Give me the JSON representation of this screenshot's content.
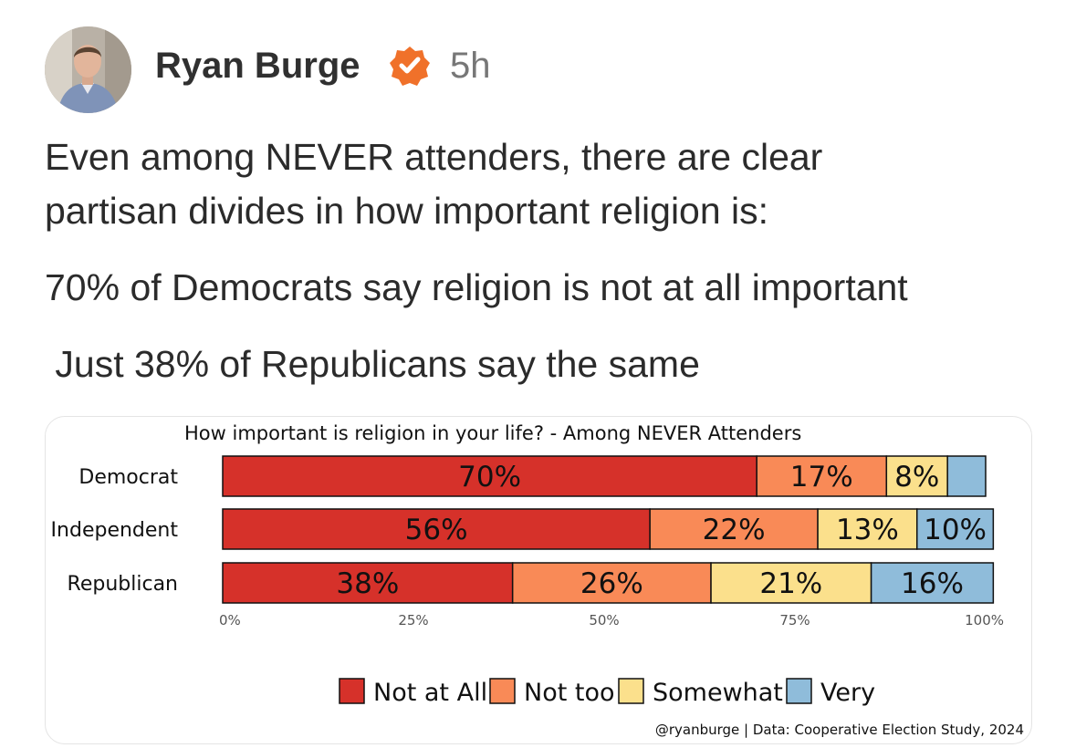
{
  "post": {
    "author": "Ryan Burge",
    "time": "5h",
    "text_lines": [
      "Even among NEVER attenders, there are clear",
      "partisan divides in how important religion is:",
      "70% of Democrats say religion is not at all important",
      " Just 38% of Republicans say the same"
    ]
  },
  "colors": {
    "not_at_all": "#d6312a",
    "not_too": "#f98a57",
    "somewhat": "#fbe08c",
    "very": "#8fbcda",
    "badge": "#f0712a"
  },
  "chart_data": {
    "type": "bar",
    "orientation": "horizontal-stacked",
    "title": "How important is religion in your life? - Among NEVER Attenders",
    "categories": [
      "Democrat",
      "Independent",
      "Republican"
    ],
    "series": [
      {
        "name": "Not at All",
        "values": [
          70,
          56,
          38
        ],
        "labels": [
          "70%",
          "56%",
          "38%"
        ]
      },
      {
        "name": "Not too",
        "values": [
          17,
          22,
          26
        ],
        "labels": [
          "17%",
          "22%",
          "26%"
        ]
      },
      {
        "name": "Somewhat",
        "values": [
          8,
          13,
          21
        ],
        "labels": [
          "8%",
          "13%",
          "21%"
        ]
      },
      {
        "name": "Very",
        "values": [
          5,
          10,
          16
        ],
        "labels": [
          "",
          "10%",
          "16%"
        ]
      }
    ],
    "x_ticks": [
      "0%",
      "25%",
      "50%",
      "75%",
      "100%"
    ],
    "xlim": [
      0,
      100
    ],
    "legend_position": "bottom",
    "caption": "@ryanburge | Data: Cooperative Election Study, 2024"
  }
}
